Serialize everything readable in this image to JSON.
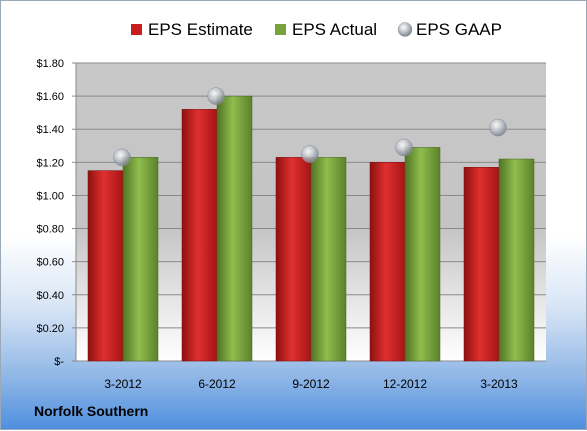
{
  "company": "Norfolk Southern",
  "chart_data": {
    "type": "bar",
    "categories": [
      "3-2012",
      "6-2012",
      "9-2012",
      "12-2012",
      "3-2013"
    ],
    "series": [
      {
        "name": "EPS Estimate",
        "kind": "bar",
        "color": "#cc1f1f",
        "values": [
          1.15,
          1.52,
          1.23,
          1.2,
          1.17
        ]
      },
      {
        "name": "EPS Actual",
        "kind": "bar",
        "color": "#77a33a",
        "values": [
          1.23,
          1.6,
          1.23,
          1.29,
          1.22
        ]
      },
      {
        "name": "EPS GAAP",
        "kind": "marker",
        "color": "#b8bcc4",
        "values": [
          1.23,
          1.6,
          1.25,
          1.29,
          1.41
        ]
      }
    ],
    "ylim": [
      0,
      1.8
    ],
    "yticks": [
      0,
      0.2,
      0.4,
      0.6,
      0.8,
      1.0,
      1.2,
      1.4,
      1.6,
      1.8
    ],
    "ytick_labels": [
      "$-",
      "$0.20",
      "$0.40",
      "$0.60",
      "$0.80",
      "$1.00",
      "$1.20",
      "$1.40",
      "$1.60",
      "$1.80"
    ],
    "grid": true,
    "legend_position": "top"
  }
}
